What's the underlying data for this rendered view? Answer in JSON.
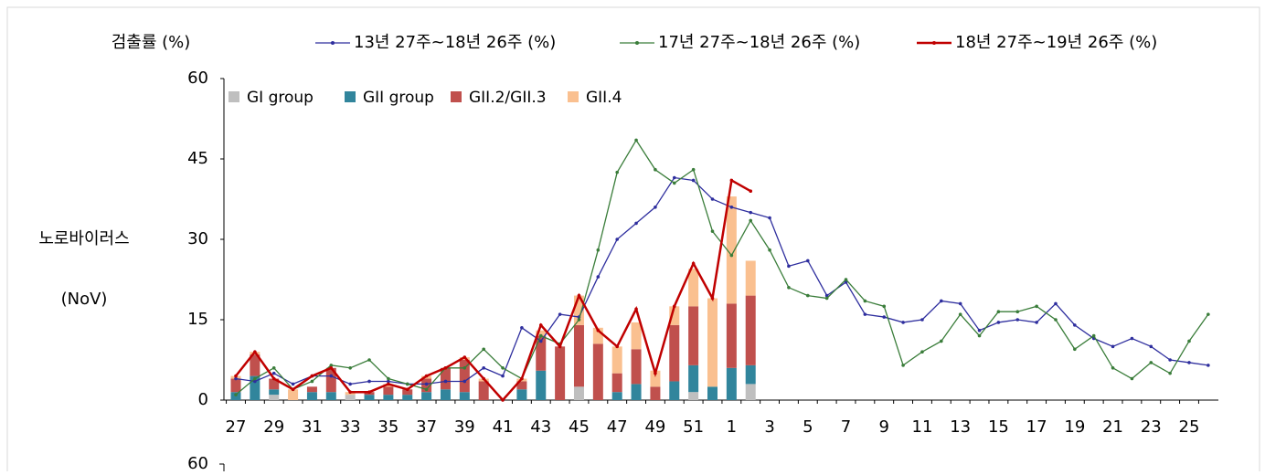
{
  "chart_data": [
    {
      "type": "bar-line",
      "y_label_top": "검출률 (%)",
      "y_label": [
        "노로바이러스",
        "(NoV)"
      ],
      "categories": [
        "27",
        null,
        "29",
        null,
        "31",
        null,
        "33",
        null,
        "35",
        null,
        "37",
        null,
        "39",
        null,
        "41",
        null,
        "43",
        null,
        "45",
        null,
        "47",
        null,
        "49",
        null,
        "51",
        null,
        "1",
        null,
        "3",
        null,
        "5",
        null,
        "7",
        null,
        "9",
        null,
        "11",
        null,
        "13",
        null,
        "15",
        null,
        "17",
        null,
        "19",
        null,
        "21",
        null,
        "23",
        null,
        "25",
        null
      ],
      "ylim": [
        0,
        60
      ],
      "yticks": [
        0,
        15,
        30,
        45,
        60
      ],
      "bar_series": [
        {
          "name": "GI group",
          "color": "#bfbfbf",
          "values": [
            0,
            0,
            1,
            0,
            0,
            0,
            1,
            0,
            0,
            0,
            0,
            0,
            0,
            0,
            0,
            0,
            0,
            0,
            2.5,
            0,
            0,
            0,
            0,
            0,
            1.5,
            0,
            0,
            3
          ]
        },
        {
          "name": "GII group",
          "color": "#31859c",
          "values": [
            1.5,
            4.5,
            1,
            0,
            1.5,
            1.5,
            0,
            1,
            1,
            1,
            1.5,
            2,
            1.5,
            0,
            0,
            2,
            5.5,
            0,
            0,
            0,
            1.5,
            3,
            0,
            3.5,
            5,
            2.5,
            6,
            3.5
          ]
        },
        {
          "name": "GII.2/GII.3",
          "color": "#c0504d",
          "values": [
            2.5,
            4,
            2,
            0,
            1,
            4.5,
            0,
            0.5,
            1.5,
            1,
            2.5,
            4,
            6,
            3.5,
            0,
            1.5,
            6.5,
            10,
            11.5,
            10.5,
            3.5,
            6.5,
            2.5,
            10.5,
            11,
            0,
            12,
            13
          ]
        },
        {
          "name": "GII.4",
          "color": "#fac090",
          "values": [
            0.5,
            0.5,
            0,
            2,
            0,
            0,
            0.5,
            0,
            0.5,
            0,
            0.5,
            0,
            0.5,
            0.5,
            0,
            0.5,
            1,
            0,
            5.5,
            3,
            5,
            5,
            3,
            3.5,
            7,
            16.5,
            20,
            6.5
          ]
        }
      ],
      "series": [
        {
          "name": "13년 27주~18년 26주 (%)",
          "color": "#2e2e9e",
          "values": [
            4,
            3.5,
            5,
            3,
            4.5,
            4.5,
            3,
            3.5,
            3.5,
            3,
            3,
            3.5,
            3.5,
            6,
            4.5,
            13.5,
            11,
            16,
            15.5,
            23,
            30,
            33,
            36,
            41.5,
            41,
            37.5,
            36,
            35,
            34,
            25,
            26,
            19.5,
            22,
            16,
            15.5,
            14.5,
            15,
            18.5,
            18,
            13,
            14.5,
            15,
            14.5,
            18,
            14,
            11.5,
            10,
            11.5,
            10,
            7.5,
            7,
            6.5
          ]
        },
        {
          "name": "17년 27주~18년 26주 (%)",
          "color": "#3a7d3a",
          "values": [
            1,
            4,
            6,
            2,
            3.5,
            6.5,
            6,
            7.5,
            4,
            3,
            2,
            6,
            6,
            9.5,
            6,
            4,
            12,
            10.5,
            15,
            28,
            42.5,
            48.5,
            43,
            40.5,
            43,
            31.5,
            27,
            33.5,
            28,
            21,
            19.5,
            19,
            22.5,
            18.5,
            17.5,
            6.5,
            9,
            11,
            16,
            12,
            16.5,
            16.5,
            17.5,
            15,
            9.5,
            12,
            6,
            4,
            7,
            5,
            11,
            16
          ]
        },
        {
          "name": "18년 27주~19년 26주 (%)",
          "color": "#c00000",
          "values": [
            4.5,
            9,
            4,
            2,
            4.5,
            6,
            1.5,
            1.5,
            3,
            2,
            4.5,
            6,
            8,
            4,
            0,
            4,
            14,
            10,
            19.5,
            13,
            10,
            17,
            5,
            17.5,
            25.5,
            19,
            41,
            39,
            null,
            null,
            null,
            null,
            null,
            null,
            null,
            null,
            null,
            null,
            null,
            null,
            null,
            null,
            null,
            null,
            null,
            null,
            null,
            null,
            null,
            null,
            null,
            null
          ]
        }
      ]
    },
    {
      "type": "bar",
      "yticks": [
        60
      ]
    }
  ]
}
